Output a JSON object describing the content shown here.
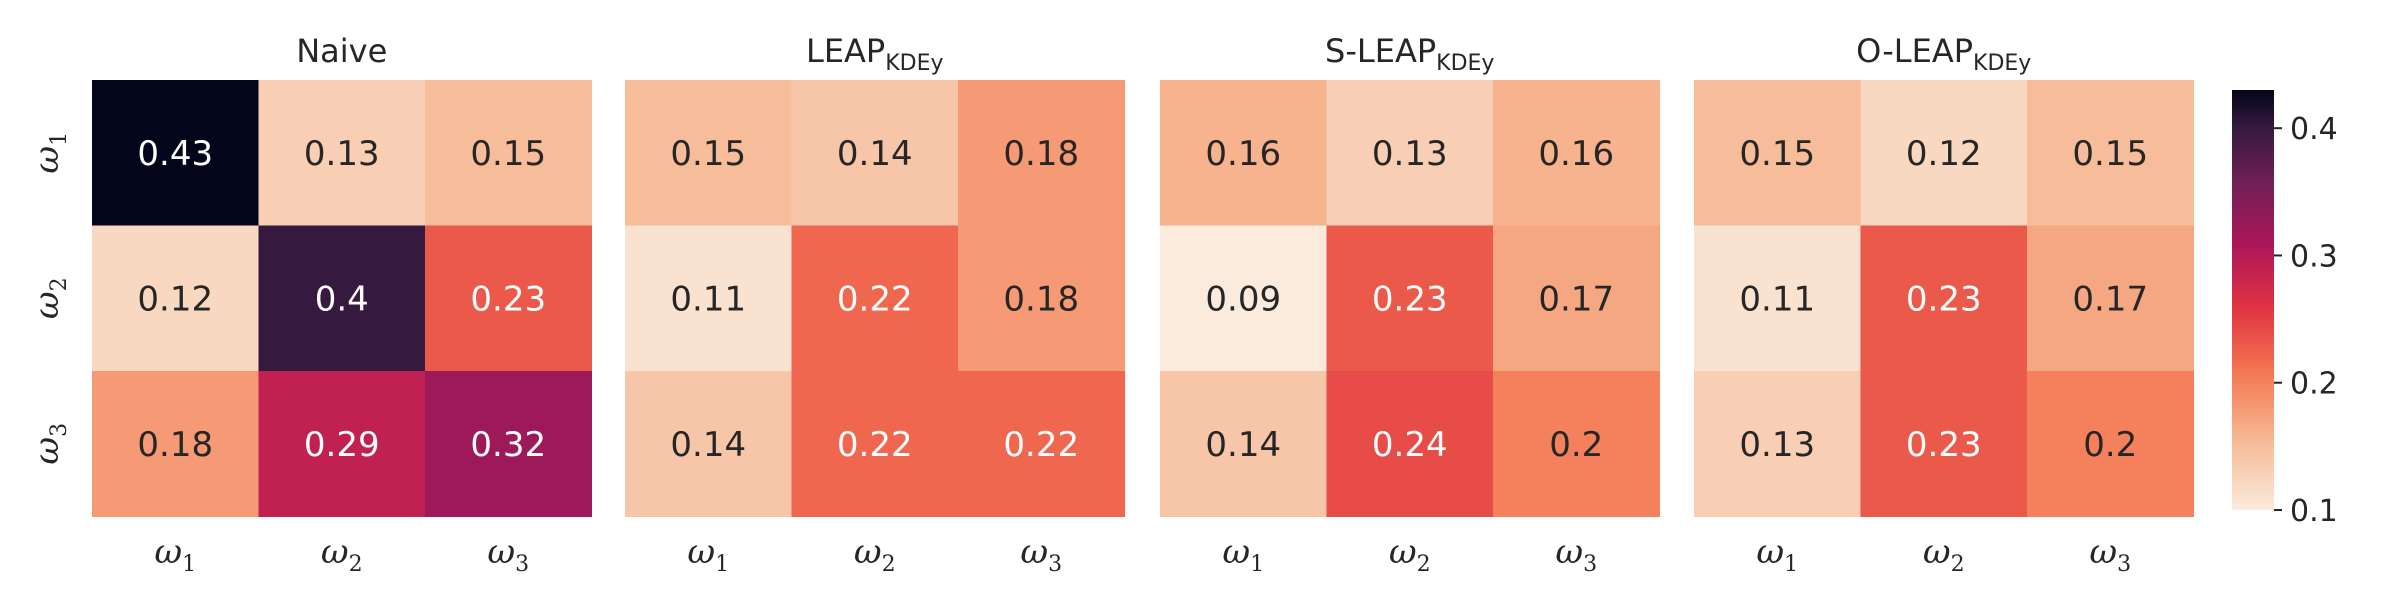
{
  "chart_data": {
    "type": "heatmap",
    "vmin": 0.1,
    "vmax": 0.43,
    "colormap": "rocket_r",
    "row_labels": [
      {
        "base": "ω",
        "sub": "1"
      },
      {
        "base": "ω",
        "sub": "2"
      },
      {
        "base": "ω",
        "sub": "3"
      }
    ],
    "col_labels": [
      {
        "base": "ω",
        "sub": "1"
      },
      {
        "base": "ω",
        "sub": "2"
      },
      {
        "base": "ω",
        "sub": "3"
      }
    ],
    "colorbar": {
      "ticks": [
        0.1,
        0.2,
        0.3,
        0.4
      ],
      "tick_labels": [
        "0.1",
        "0.2",
        "0.3",
        "0.4"
      ]
    },
    "panels": [
      {
        "title_main": "Naive",
        "title_sub": "",
        "values": [
          [
            0.43,
            0.13,
            0.15
          ],
          [
            0.12,
            0.4,
            0.23
          ],
          [
            0.18,
            0.29,
            0.32
          ]
        ],
        "labels": [
          [
            "0.43",
            "0.13",
            "0.15"
          ],
          [
            "0.12",
            "0.4",
            "0.23"
          ],
          [
            "0.18",
            "0.29",
            "0.32"
          ]
        ]
      },
      {
        "title_main": "LEAP",
        "title_sub": "KDEy",
        "values": [
          [
            0.15,
            0.14,
            0.18
          ],
          [
            0.11,
            0.22,
            0.18
          ],
          [
            0.14,
            0.22,
            0.22
          ]
        ],
        "labels": [
          [
            "0.15",
            "0.14",
            "0.18"
          ],
          [
            "0.11",
            "0.22",
            "0.18"
          ],
          [
            "0.14",
            "0.22",
            "0.22"
          ]
        ]
      },
      {
        "title_main": "S-LEAP",
        "title_sub": "KDEy",
        "values": [
          [
            0.16,
            0.13,
            0.16
          ],
          [
            0.09,
            0.23,
            0.17
          ],
          [
            0.14,
            0.24,
            0.2
          ]
        ],
        "labels": [
          [
            "0.16",
            "0.13",
            "0.16"
          ],
          [
            "0.09",
            "0.23",
            "0.17"
          ],
          [
            "0.14",
            "0.24",
            "0.2"
          ]
        ]
      },
      {
        "title_main": "O-LEAP",
        "title_sub": "KDEy",
        "values": [
          [
            0.15,
            0.12,
            0.15
          ],
          [
            0.11,
            0.23,
            0.17
          ],
          [
            0.13,
            0.23,
            0.2
          ]
        ],
        "labels": [
          [
            "0.15",
            "0.12",
            "0.15"
          ],
          [
            "0.11",
            "0.23",
            "0.17"
          ],
          [
            "0.13",
            "0.23",
            "0.2"
          ]
        ]
      }
    ]
  }
}
